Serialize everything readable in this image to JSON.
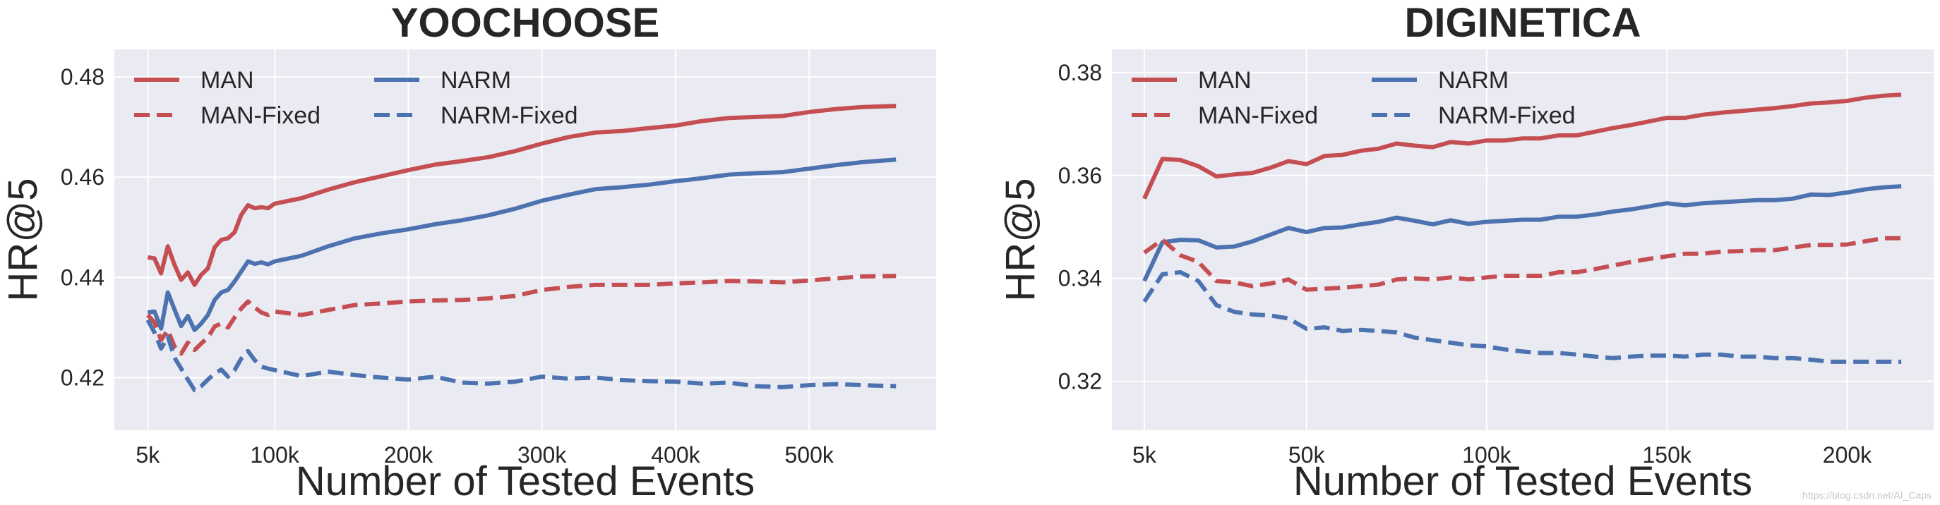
{
  "chart_data": [
    {
      "type": "line",
      "title": "YOOCHOOSE",
      "xlabel": "Number of Tested Events",
      "ylabel": "HR@5",
      "xlim": [
        -20000,
        595000
      ],
      "ylim": [
        0.4095,
        0.4855
      ],
      "xticks": [
        5000,
        100000,
        200000,
        300000,
        400000,
        500000
      ],
      "xtick_labels": [
        "5k",
        "100k",
        "200k",
        "300k",
        "400k",
        "500k"
      ],
      "yticks": [
        0.42,
        0.44,
        0.46,
        0.48
      ],
      "ytick_labels": [
        "0.42",
        "0.44",
        "0.46",
        "0.48"
      ],
      "grid": true,
      "legend": "top-left",
      "series": [
        {
          "name": "MAN",
          "color": "#c44e52",
          "dash": "solid",
          "x": [
            5000,
            10000,
            15000,
            20000,
            25000,
            30000,
            35000,
            40000,
            45000,
            50000,
            55000,
            60000,
            65000,
            70000,
            75000,
            80000,
            85000,
            90000,
            95000,
            100000,
            120000,
            140000,
            160000,
            180000,
            200000,
            220000,
            240000,
            260000,
            280000,
            300000,
            320000,
            340000,
            360000,
            380000,
            400000,
            420000,
            440000,
            460000,
            480000,
            500000,
            520000,
            540000,
            565000
          ],
          "y": [
            0.444,
            0.4438,
            0.4408,
            0.4462,
            0.4425,
            0.4395,
            0.441,
            0.4385,
            0.4405,
            0.4418,
            0.446,
            0.4475,
            0.4478,
            0.449,
            0.4525,
            0.4544,
            0.4538,
            0.454,
            0.4538,
            0.4547,
            0.4558,
            0.4575,
            0.459,
            0.4602,
            0.4614,
            0.4625,
            0.4632,
            0.464,
            0.4652,
            0.4667,
            0.468,
            0.4689,
            0.4692,
            0.4698,
            0.4703,
            0.4712,
            0.4718,
            0.472,
            0.4722,
            0.473,
            0.4736,
            0.474,
            0.4742
          ]
        },
        {
          "name": "NARM",
          "color": "#4c72b0",
          "dash": "solid",
          "x": [
            5000,
            10000,
            15000,
            20000,
            25000,
            30000,
            35000,
            40000,
            45000,
            50000,
            55000,
            60000,
            65000,
            70000,
            75000,
            80000,
            85000,
            90000,
            95000,
            100000,
            120000,
            140000,
            160000,
            180000,
            200000,
            220000,
            240000,
            260000,
            280000,
            300000,
            320000,
            340000,
            360000,
            380000,
            400000,
            420000,
            440000,
            460000,
            480000,
            500000,
            520000,
            540000,
            565000
          ],
          "y": [
            0.433,
            0.4332,
            0.4298,
            0.437,
            0.4336,
            0.4303,
            0.4323,
            0.4295,
            0.4308,
            0.4325,
            0.4355,
            0.437,
            0.4375,
            0.4392,
            0.4412,
            0.4432,
            0.4427,
            0.443,
            0.4426,
            0.4432,
            0.4443,
            0.4462,
            0.4478,
            0.4488,
            0.4496,
            0.4506,
            0.4514,
            0.4524,
            0.4537,
            0.4553,
            0.4565,
            0.4576,
            0.458,
            0.4585,
            0.4592,
            0.4598,
            0.4605,
            0.4608,
            0.461,
            0.4617,
            0.4624,
            0.463,
            0.4635
          ]
        },
        {
          "name": "MAN-Fixed",
          "color": "#c44e52",
          "dash": "dashed",
          "x": [
            5000,
            10000,
            15000,
            20000,
            25000,
            30000,
            35000,
            40000,
            45000,
            50000,
            55000,
            60000,
            65000,
            70000,
            75000,
            80000,
            85000,
            90000,
            95000,
            100000,
            120000,
            140000,
            160000,
            180000,
            200000,
            220000,
            240000,
            260000,
            280000,
            300000,
            320000,
            340000,
            360000,
            380000,
            400000,
            420000,
            440000,
            460000,
            480000,
            500000,
            520000,
            540000,
            565000
          ],
          "y": [
            0.4325,
            0.431,
            0.4275,
            0.4295,
            0.4262,
            0.4248,
            0.427,
            0.4255,
            0.4268,
            0.428,
            0.4302,
            0.4308,
            0.43,
            0.432,
            0.4338,
            0.4352,
            0.434,
            0.433,
            0.4325,
            0.4332,
            0.4325,
            0.4335,
            0.4345,
            0.4348,
            0.4352,
            0.4354,
            0.4355,
            0.4358,
            0.4363,
            0.4375,
            0.4381,
            0.4385,
            0.4385,
            0.4385,
            0.4388,
            0.439,
            0.4393,
            0.4392,
            0.439,
            0.4394,
            0.4398,
            0.4402,
            0.4403
          ]
        },
        {
          "name": "NARM-Fixed",
          "color": "#4c72b0",
          "dash": "dashed",
          "x": [
            5000,
            10000,
            15000,
            20000,
            25000,
            30000,
            35000,
            40000,
            45000,
            50000,
            55000,
            60000,
            65000,
            70000,
            75000,
            80000,
            85000,
            90000,
            95000,
            100000,
            120000,
            140000,
            160000,
            180000,
            200000,
            220000,
            240000,
            260000,
            280000,
            300000,
            320000,
            340000,
            360000,
            380000,
            400000,
            420000,
            440000,
            460000,
            480000,
            500000,
            520000,
            540000,
            565000
          ],
          "y": [
            0.4315,
            0.429,
            0.4258,
            0.4282,
            0.424,
            0.4218,
            0.4196,
            0.4175,
            0.4183,
            0.4196,
            0.4208,
            0.4216,
            0.4202,
            0.4215,
            0.4238,
            0.4253,
            0.4235,
            0.4222,
            0.4218,
            0.4215,
            0.4203,
            0.4212,
            0.4205,
            0.42,
            0.4196,
            0.4202,
            0.419,
            0.4188,
            0.4192,
            0.4202,
            0.4198,
            0.42,
            0.4195,
            0.4193,
            0.4192,
            0.4188,
            0.419,
            0.4183,
            0.4181,
            0.4185,
            0.4187,
            0.4185,
            0.4183
          ]
        }
      ]
    },
    {
      "type": "line",
      "title": "DIGINETICA",
      "xlabel": "Number of Tested Events",
      "ylabel": "HR@5",
      "xlim": [
        -4000,
        224000
      ],
      "ylim": [
        0.3105,
        0.3845
      ],
      "xticks": [
        5000,
        50000,
        100000,
        150000,
        200000
      ],
      "xtick_labels": [
        "5k",
        "50k",
        "100k",
        "150k",
        "200k"
      ],
      "yticks": [
        0.32,
        0.34,
        0.36,
        0.38
      ],
      "ytick_labels": [
        "0.32",
        "0.34",
        "0.36",
        "0.38"
      ],
      "grid": true,
      "legend": "top-left",
      "series": [
        {
          "name": "MAN",
          "color": "#c44e52",
          "dash": "solid",
          "x": [
            5000,
            10000,
            15000,
            20000,
            25000,
            30000,
            35000,
            40000,
            45000,
            50000,
            55000,
            60000,
            65000,
            70000,
            75000,
            80000,
            85000,
            90000,
            95000,
            100000,
            105000,
            110000,
            115000,
            120000,
            125000,
            130000,
            135000,
            140000,
            145000,
            150000,
            155000,
            160000,
            165000,
            170000,
            175000,
            180000,
            185000,
            190000,
            195000,
            200000,
            205000,
            210000,
            215000
          ],
          "y": [
            0.3555,
            0.3632,
            0.363,
            0.3618,
            0.3598,
            0.3602,
            0.3605,
            0.3615,
            0.3628,
            0.3622,
            0.3638,
            0.364,
            0.3648,
            0.3652,
            0.3662,
            0.3658,
            0.3655,
            0.3665,
            0.3662,
            0.3668,
            0.3668,
            0.3672,
            0.3672,
            0.3678,
            0.3678,
            0.3685,
            0.3692,
            0.3698,
            0.3705,
            0.3712,
            0.3712,
            0.3718,
            0.3722,
            0.3725,
            0.3728,
            0.3731,
            0.3735,
            0.374,
            0.3742,
            0.3745,
            0.3751,
            0.3755,
            0.3757
          ]
        },
        {
          "name": "NARM",
          "color": "#4c72b0",
          "dash": "solid",
          "x": [
            5000,
            10000,
            15000,
            20000,
            25000,
            30000,
            35000,
            40000,
            45000,
            50000,
            55000,
            60000,
            65000,
            70000,
            75000,
            80000,
            85000,
            90000,
            95000,
            100000,
            105000,
            110000,
            115000,
            120000,
            125000,
            130000,
            135000,
            140000,
            145000,
            150000,
            155000,
            160000,
            165000,
            170000,
            175000,
            180000,
            185000,
            190000,
            195000,
            200000,
            205000,
            210000,
            215000
          ],
          "y": [
            0.3395,
            0.347,
            0.3475,
            0.3474,
            0.346,
            0.3462,
            0.3472,
            0.3485,
            0.3498,
            0.349,
            0.3498,
            0.3499,
            0.3505,
            0.351,
            0.3518,
            0.3512,
            0.3505,
            0.3513,
            0.3506,
            0.351,
            0.3512,
            0.3514,
            0.3514,
            0.352,
            0.352,
            0.3524,
            0.353,
            0.3534,
            0.354,
            0.3546,
            0.3542,
            0.3546,
            0.3548,
            0.355,
            0.3552,
            0.3552,
            0.3555,
            0.3563,
            0.3562,
            0.3567,
            0.3573,
            0.3577,
            0.3579
          ]
        },
        {
          "name": "MAN-Fixed",
          "color": "#c44e52",
          "dash": "dashed",
          "x": [
            5000,
            10000,
            15000,
            20000,
            25000,
            30000,
            35000,
            40000,
            45000,
            50000,
            55000,
            60000,
            65000,
            70000,
            75000,
            80000,
            85000,
            90000,
            95000,
            100000,
            105000,
            110000,
            115000,
            120000,
            125000,
            130000,
            135000,
            140000,
            145000,
            150000,
            155000,
            160000,
            165000,
            170000,
            175000,
            180000,
            185000,
            190000,
            195000,
            200000,
            205000,
            210000,
            215000
          ],
          "y": [
            0.345,
            0.3475,
            0.3445,
            0.3432,
            0.3395,
            0.3392,
            0.3385,
            0.339,
            0.3398,
            0.3378,
            0.338,
            0.3382,
            0.3385,
            0.3388,
            0.3398,
            0.34,
            0.3398,
            0.3402,
            0.3398,
            0.3402,
            0.3405,
            0.3405,
            0.3405,
            0.3412,
            0.3412,
            0.3418,
            0.3425,
            0.3432,
            0.3438,
            0.3443,
            0.3448,
            0.3448,
            0.3452,
            0.3453,
            0.3455,
            0.3455,
            0.346,
            0.3465,
            0.3465,
            0.3466,
            0.3472,
            0.3478,
            0.3478
          ]
        },
        {
          "name": "NARM-Fixed",
          "color": "#4c72b0",
          "dash": "dashed",
          "x": [
            5000,
            10000,
            15000,
            20000,
            25000,
            30000,
            35000,
            40000,
            45000,
            50000,
            55000,
            60000,
            65000,
            70000,
            75000,
            80000,
            85000,
            90000,
            95000,
            100000,
            105000,
            110000,
            115000,
            120000,
            125000,
            130000,
            135000,
            140000,
            145000,
            150000,
            155000,
            160000,
            165000,
            170000,
            175000,
            180000,
            185000,
            190000,
            195000,
            200000,
            205000,
            210000,
            215000
          ],
          "y": [
            0.3355,
            0.3408,
            0.3412,
            0.3395,
            0.3348,
            0.3335,
            0.333,
            0.3328,
            0.3322,
            0.3302,
            0.3305,
            0.3298,
            0.33,
            0.3298,
            0.3295,
            0.3285,
            0.328,
            0.3275,
            0.327,
            0.3268,
            0.3262,
            0.3258,
            0.3255,
            0.3255,
            0.3252,
            0.3248,
            0.3245,
            0.3248,
            0.325,
            0.325,
            0.3248,
            0.3252,
            0.3252,
            0.3248,
            0.3248,
            0.3245,
            0.3245,
            0.3242,
            0.3238,
            0.3238,
            0.3238,
            0.3238,
            0.3238
          ]
        }
      ]
    }
  ],
  "watermark": "https://blog.csdn.net/AI_Caps"
}
